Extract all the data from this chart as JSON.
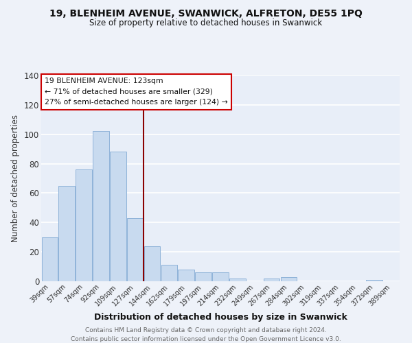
{
  "title": "19, BLENHEIM AVENUE, SWANWICK, ALFRETON, DE55 1PQ",
  "subtitle": "Size of property relative to detached houses in Swanwick",
  "xlabel": "Distribution of detached houses by size in Swanwick",
  "ylabel": "Number of detached properties",
  "bar_labels": [
    "39sqm",
    "57sqm",
    "74sqm",
    "92sqm",
    "109sqm",
    "127sqm",
    "144sqm",
    "162sqm",
    "179sqm",
    "197sqm",
    "214sqm",
    "232sqm",
    "249sqm",
    "267sqm",
    "284sqm",
    "302sqm",
    "319sqm",
    "337sqm",
    "354sqm",
    "372sqm",
    "389sqm"
  ],
  "bar_values": [
    30,
    65,
    76,
    102,
    88,
    43,
    24,
    11,
    8,
    6,
    6,
    2,
    0,
    2,
    3,
    0,
    0,
    0,
    0,
    1,
    0
  ],
  "bar_color": "#c8daef",
  "bar_edge_color": "#8fb3d9",
  "vline_color": "#8b0000",
  "annotation_title": "19 BLENHEIM AVENUE: 123sqm",
  "annotation_line1": "← 71% of detached houses are smaller (329)",
  "annotation_line2": "27% of semi-detached houses are larger (124) →",
  "annotation_box_color": "#ffffff",
  "annotation_box_edge": "#cc0000",
  "ylim": [
    0,
    140
  ],
  "yticks": [
    0,
    20,
    40,
    60,
    80,
    100,
    120,
    140
  ],
  "footer1": "Contains HM Land Registry data © Crown copyright and database right 2024.",
  "footer2": "Contains public sector information licensed under the Open Government Licence v3.0.",
  "background_color": "#eef2f9",
  "plot_bg_color": "#e8eef8",
  "grid_color": "#ffffff"
}
